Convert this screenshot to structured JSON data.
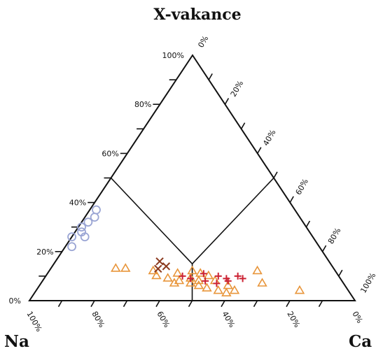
{
  "chart_data": {
    "type": "ternary-scatter",
    "title": "X-vakance",
    "apex_top": "X-vakance",
    "apex_left": "Na",
    "apex_right": "Ca",
    "tick_labels": {
      "left_axis": [
        "0%",
        "20%",
        "40%",
        "60%",
        "80%",
        "100%"
      ],
      "right_axis": [
        "0%",
        "20%",
        "40%",
        "60%",
        "80%",
        "100%"
      ],
      "bottom_axis": [
        "100%",
        "80%",
        "60%",
        "40%",
        "20%",
        "0%"
      ]
    },
    "fields": [
      {
        "name": "vacancy-field",
        "boundary_vacancy": 0.5
      },
      {
        "name": "alkali-calcic-split",
        "boundary": "Na = Ca"
      }
    ],
    "series": [
      {
        "marker": "circle",
        "color": "#9aa5d4",
        "points": [
          {
            "vacancy": 0.37,
            "ca": 0.02
          },
          {
            "vacancy": 0.34,
            "ca": 0.03
          },
          {
            "vacancy": 0.32,
            "ca": 0.02
          },
          {
            "vacancy": 0.3,
            "ca": 0.01
          },
          {
            "vacancy": 0.28,
            "ca": 0.02
          },
          {
            "vacancy": 0.26,
            "ca": 0.0
          },
          {
            "vacancy": 0.26,
            "ca": 0.04
          },
          {
            "vacancy": 0.22,
            "ca": 0.02
          }
        ]
      },
      {
        "marker": "triangle",
        "color": "#e8953a",
        "points": [
          {
            "vacancy": 0.13,
            "ca": 0.2
          },
          {
            "vacancy": 0.13,
            "ca": 0.23
          },
          {
            "vacancy": 0.12,
            "ca": 0.32
          },
          {
            "vacancy": 0.1,
            "ca": 0.34
          },
          {
            "vacancy": 0.09,
            "ca": 0.38
          },
          {
            "vacancy": 0.11,
            "ca": 0.4
          },
          {
            "vacancy": 0.08,
            "ca": 0.42
          },
          {
            "vacancy": 0.07,
            "ca": 0.41
          },
          {
            "vacancy": 0.12,
            "ca": 0.44
          },
          {
            "vacancy": 0.09,
            "ca": 0.45
          },
          {
            "vacancy": 0.07,
            "ca": 0.46
          },
          {
            "vacancy": 0.11,
            "ca": 0.47
          },
          {
            "vacancy": 0.08,
            "ca": 0.48
          },
          {
            "vacancy": 0.06,
            "ca": 0.49
          },
          {
            "vacancy": 0.1,
            "ca": 0.5
          },
          {
            "vacancy": 0.05,
            "ca": 0.52
          },
          {
            "vacancy": 0.08,
            "ca": 0.53
          },
          {
            "vacancy": 0.04,
            "ca": 0.56
          },
          {
            "vacancy": 0.06,
            "ca": 0.58
          },
          {
            "vacancy": 0.03,
            "ca": 0.59
          },
          {
            "vacancy": 0.12,
            "ca": 0.64
          },
          {
            "vacancy": 0.04,
            "ca": 0.61
          },
          {
            "vacancy": 0.07,
            "ca": 0.68
          },
          {
            "vacancy": 0.04,
            "ca": 0.81
          }
        ]
      },
      {
        "marker": "cross",
        "color": "#8b3a1e",
        "points": [
          {
            "vacancy": 0.16,
            "ca": 0.32
          },
          {
            "vacancy": 0.13,
            "ca": 0.33
          },
          {
            "vacancy": 0.14,
            "ca": 0.35
          }
        ]
      },
      {
        "marker": "plus",
        "color": "#cc2233",
        "points": [
          {
            "vacancy": 0.1,
            "ca": 0.42
          },
          {
            "vacancy": 0.09,
            "ca": 0.45
          },
          {
            "vacancy": 0.11,
            "ca": 0.48
          },
          {
            "vacancy": 0.08,
            "ca": 0.5
          },
          {
            "vacancy": 0.1,
            "ca": 0.53
          },
          {
            "vacancy": 0.07,
            "ca": 0.54
          },
          {
            "vacancy": 0.09,
            "ca": 0.56
          },
          {
            "vacancy": 0.08,
            "ca": 0.57
          },
          {
            "vacancy": 0.1,
            "ca": 0.59
          },
          {
            "vacancy": 0.09,
            "ca": 0.61
          }
        ]
      }
    ]
  }
}
